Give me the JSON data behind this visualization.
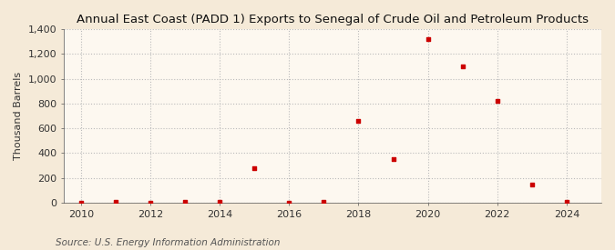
{
  "title": "Annual East Coast (PADD 1) Exports to Senegal of Crude Oil and Petroleum Products",
  "ylabel": "Thousand Barrels",
  "source": "Source: U.S. Energy Information Administration",
  "background_color": "#f5ead8",
  "plot_background_color": "#fdf8f0",
  "marker_color": "#cc0000",
  "grid_color": "#bbbbbb",
  "axis_color": "#555555",
  "years": [
    2010,
    2011,
    2012,
    2013,
    2014,
    2015,
    2016,
    2017,
    2018,
    2019,
    2020,
    2021,
    2022,
    2023,
    2024
  ],
  "values": [
    2,
    5,
    2,
    5,
    5,
    280,
    2,
    5,
    660,
    355,
    1320,
    1100,
    820,
    145,
    5
  ],
  "xlim": [
    2009.5,
    2025.0
  ],
  "ylim": [
    0,
    1400
  ],
  "yticks": [
    0,
    200,
    400,
    600,
    800,
    1000,
    1200,
    1400
  ],
  "xticks": [
    2010,
    2012,
    2014,
    2016,
    2018,
    2020,
    2022,
    2024
  ],
  "title_fontsize": 9.5,
  "label_fontsize": 8,
  "tick_fontsize": 8,
  "source_fontsize": 7.5
}
